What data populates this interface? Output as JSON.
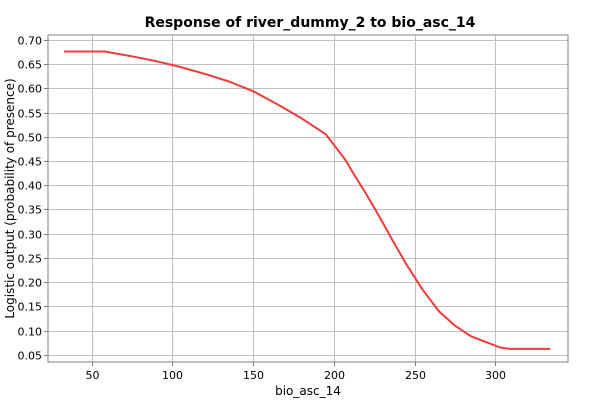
{
  "chart_data": {
    "type": "line",
    "title": "Response of river_dummy_2 to bio_asc_14",
    "xlabel": "bio_asc_14",
    "ylabel": "Logistic output (probability of presence)",
    "xlim": [
      23,
      345
    ],
    "ylim": [
      0.035,
      0.71
    ],
    "x_ticks": [
      50,
      100,
      150,
      200,
      250,
      300
    ],
    "y_ticks": [
      0.05,
      0.1,
      0.15,
      0.2,
      0.25,
      0.3,
      0.35,
      0.4,
      0.45,
      0.5,
      0.55,
      0.6,
      0.65,
      0.7
    ],
    "grid": true,
    "series": [
      {
        "color": "#ee3b3b",
        "x": [
          33,
          58,
          75,
          90,
          105,
          120,
          135,
          150,
          165,
          180,
          195,
          207,
          212,
          220,
          228,
          236,
          245,
          255,
          265,
          275,
          285,
          295,
          303,
          309,
          334
        ],
        "y": [
          0.676,
          0.676,
          0.666,
          0.656,
          0.644,
          0.63,
          0.614,
          0.594,
          0.567,
          0.538,
          0.505,
          0.453,
          0.425,
          0.382,
          0.336,
          0.288,
          0.236,
          0.184,
          0.14,
          0.11,
          0.088,
          0.075,
          0.065,
          0.062,
          0.062
        ]
      }
    ]
  }
}
